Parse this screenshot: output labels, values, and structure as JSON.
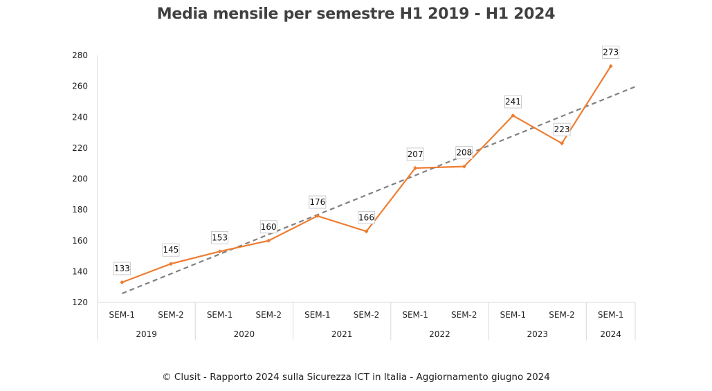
{
  "chart_data": {
    "type": "line",
    "title": "Media mensile per semestre H1 2019 - H1 2024",
    "categories": [
      "SEM-1",
      "SEM-2",
      "SEM-1",
      "SEM-2",
      "SEM-1",
      "SEM-2",
      "SEM-1",
      "SEM-2",
      "SEM-1",
      "SEM-2",
      "SEM-1"
    ],
    "groups": [
      {
        "label": "2019",
        "span": 2
      },
      {
        "label": "2020",
        "span": 2
      },
      {
        "label": "2021",
        "span": 2
      },
      {
        "label": "2022",
        "span": 2
      },
      {
        "label": "2023",
        "span": 2
      },
      {
        "label": "2024",
        "span": 1
      }
    ],
    "series": [
      {
        "values": [
          133,
          145,
          153,
          160,
          176,
          166,
          207,
          208,
          241,
          223,
          273
        ],
        "color": "#ED7D31",
        "data_labels": true
      }
    ],
    "trendline": {
      "style": "dashed",
      "color": "#808080",
      "type": "linear"
    },
    "ylim": [
      120,
      280
    ],
    "yticks": [
      120,
      140,
      160,
      180,
      200,
      220,
      240,
      260,
      280
    ],
    "grid": false,
    "legend": "none"
  },
  "footer": "© Clusit - Rapporto 2024 sulla Sicurezza ICT in Italia - Aggiornamento giugno 2024"
}
